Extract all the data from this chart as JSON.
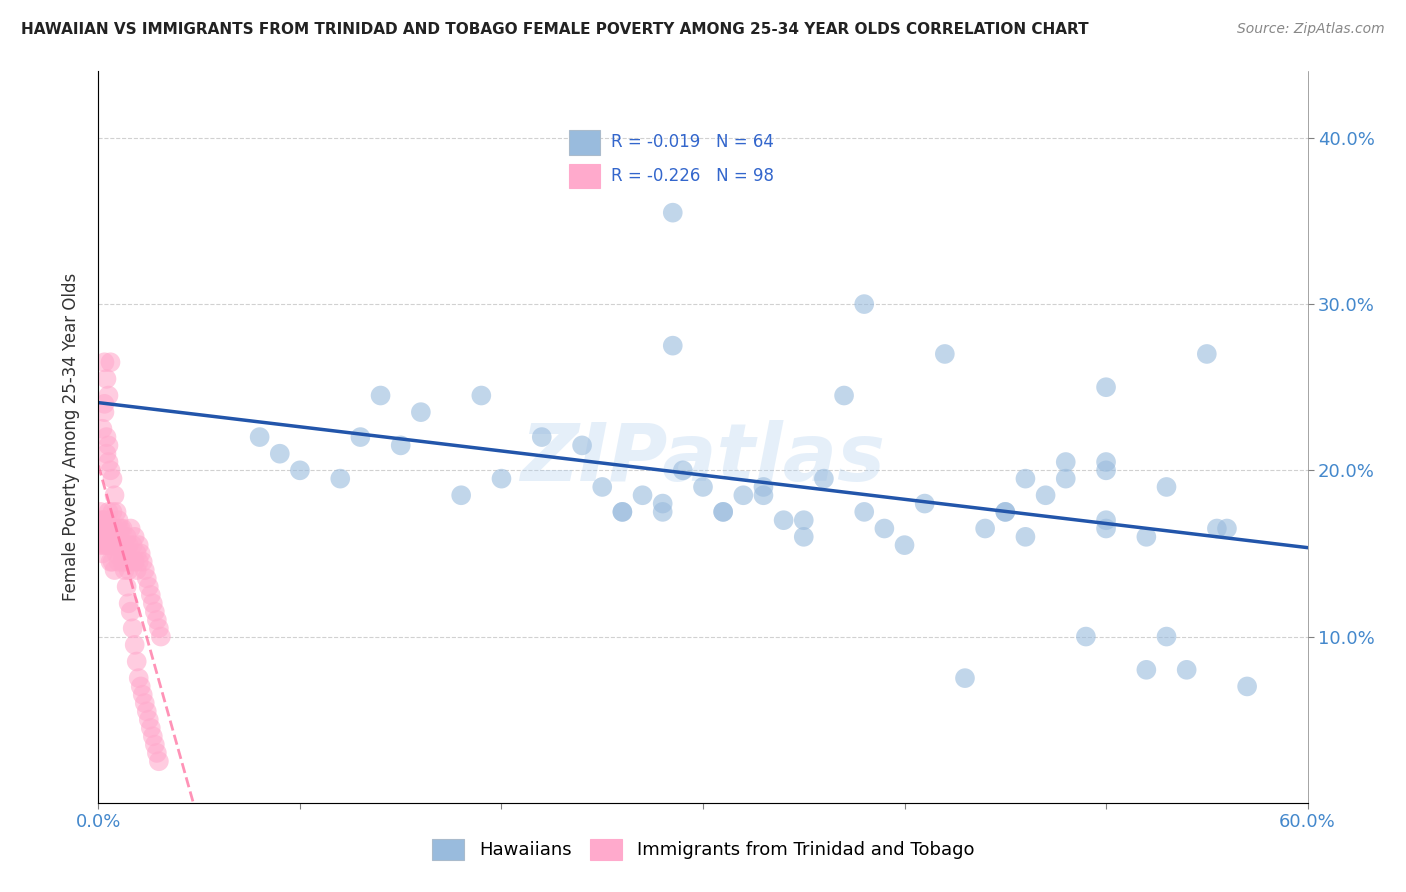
{
  "title": "HAWAIIAN VS IMMIGRANTS FROM TRINIDAD AND TOBAGO FEMALE POVERTY AMONG 25-34 YEAR OLDS CORRELATION CHART",
  "source": "Source: ZipAtlas.com",
  "ylabel": "Female Poverty Among 25-34 Year Olds",
  "legend_label1": "Hawaiians",
  "legend_label2": "Immigrants from Trinidad and Tobago",
  "color_blue": "#99BBDD",
  "color_blue_line": "#2255AA",
  "color_pink": "#FFAACC",
  "color_pink_line": "#FF6699",
  "color_tick": "#4488CC",
  "xlim": [
    0.0,
    0.6
  ],
  "ylim": [
    0.0,
    0.44
  ],
  "hawaiians_x": [
    0.285,
    0.38,
    0.285,
    0.42,
    0.55,
    0.5,
    0.37,
    0.48,
    0.5,
    0.53,
    0.49,
    0.53,
    0.555,
    0.54,
    0.57,
    0.08,
    0.09,
    0.1,
    0.12,
    0.13,
    0.14,
    0.15,
    0.16,
    0.18,
    0.19,
    0.2,
    0.22,
    0.24,
    0.25,
    0.26,
    0.27,
    0.28,
    0.29,
    0.3,
    0.31,
    0.33,
    0.34,
    0.36,
    0.39,
    0.4,
    0.41,
    0.43,
    0.44,
    0.45,
    0.46,
    0.47,
    0.48,
    0.5,
    0.38,
    0.33,
    0.35,
    0.35,
    0.45,
    0.46,
    0.5,
    0.31,
    0.32,
    0.28,
    0.26,
    0.5,
    0.52,
    0.52,
    0.56
  ],
  "hawaiians_y": [
    0.355,
    0.3,
    0.275,
    0.27,
    0.27,
    0.25,
    0.245,
    0.205,
    0.2,
    0.19,
    0.1,
    0.1,
    0.165,
    0.08,
    0.07,
    0.22,
    0.21,
    0.2,
    0.195,
    0.22,
    0.245,
    0.215,
    0.235,
    0.185,
    0.245,
    0.195,
    0.22,
    0.215,
    0.19,
    0.175,
    0.185,
    0.18,
    0.2,
    0.19,
    0.175,
    0.185,
    0.17,
    0.195,
    0.165,
    0.155,
    0.18,
    0.075,
    0.165,
    0.175,
    0.195,
    0.185,
    0.195,
    0.205,
    0.175,
    0.19,
    0.17,
    0.16,
    0.175,
    0.16,
    0.165,
    0.175,
    0.185,
    0.175,
    0.175,
    0.17,
    0.08,
    0.16,
    0.165
  ],
  "trinidad_x": [
    0.001,
    0.001,
    0.002,
    0.002,
    0.002,
    0.003,
    0.003,
    0.003,
    0.003,
    0.004,
    0.004,
    0.004,
    0.005,
    0.005,
    0.005,
    0.005,
    0.005,
    0.006,
    0.006,
    0.006,
    0.006,
    0.007,
    0.007,
    0.007,
    0.007,
    0.008,
    0.008,
    0.008,
    0.009,
    0.009,
    0.009,
    0.01,
    0.01,
    0.01,
    0.011,
    0.011,
    0.012,
    0.012,
    0.013,
    0.013,
    0.014,
    0.014,
    0.015,
    0.015,
    0.016,
    0.016,
    0.017,
    0.018,
    0.018,
    0.019,
    0.019,
    0.02,
    0.02,
    0.021,
    0.022,
    0.023,
    0.024,
    0.025,
    0.026,
    0.027,
    0.028,
    0.029,
    0.03,
    0.031,
    0.001,
    0.002,
    0.002,
    0.003,
    0.003,
    0.004,
    0.004,
    0.005,
    0.005,
    0.006,
    0.007,
    0.008,
    0.009,
    0.01,
    0.011,
    0.012,
    0.013,
    0.014,
    0.015,
    0.016,
    0.017,
    0.018,
    0.019,
    0.02,
    0.021,
    0.022,
    0.023,
    0.024,
    0.025,
    0.026,
    0.027,
    0.028,
    0.029,
    0.03
  ],
  "trinidad_y": [
    0.155,
    0.16,
    0.165,
    0.15,
    0.17,
    0.155,
    0.16,
    0.265,
    0.17,
    0.155,
    0.255,
    0.165,
    0.155,
    0.175,
    0.16,
    0.245,
    0.165,
    0.155,
    0.265,
    0.145,
    0.155,
    0.16,
    0.175,
    0.155,
    0.145,
    0.165,
    0.155,
    0.14,
    0.16,
    0.155,
    0.15,
    0.155,
    0.17,
    0.145,
    0.165,
    0.155,
    0.15,
    0.165,
    0.155,
    0.145,
    0.16,
    0.15,
    0.155,
    0.14,
    0.165,
    0.145,
    0.155,
    0.16,
    0.145,
    0.15,
    0.14,
    0.155,
    0.145,
    0.15,
    0.145,
    0.14,
    0.135,
    0.13,
    0.125,
    0.12,
    0.115,
    0.11,
    0.105,
    0.1,
    0.175,
    0.17,
    0.225,
    0.24,
    0.235,
    0.22,
    0.21,
    0.215,
    0.205,
    0.2,
    0.195,
    0.185,
    0.175,
    0.165,
    0.155,
    0.145,
    0.14,
    0.13,
    0.12,
    0.115,
    0.105,
    0.095,
    0.085,
    0.075,
    0.07,
    0.065,
    0.06,
    0.055,
    0.05,
    0.045,
    0.04,
    0.035,
    0.03,
    0.025
  ]
}
